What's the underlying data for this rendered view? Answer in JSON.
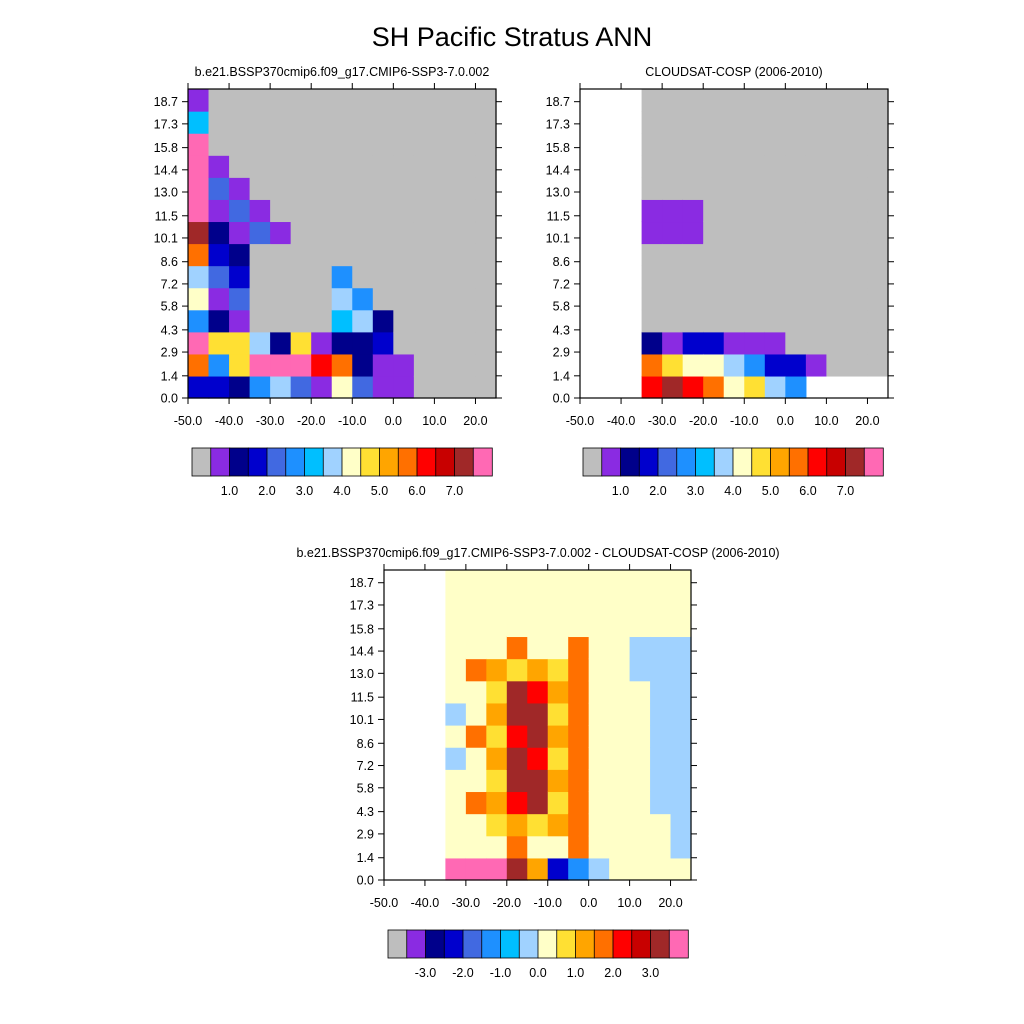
{
  "figure": {
    "title": "SH Pacific Stratus ANN"
  },
  "chart_data": [
    {
      "type": "heatmap",
      "title": "b.e21.BSSP370cmip6.f09_g17.CMIP6-SSP3-7.0.002",
      "x_ticks": [
        "-50.0",
        "-40.0",
        "-30.0",
        "-20.0",
        "-10.0",
        "0.0",
        "10.0",
        "20.0"
      ],
      "y_ticks": [
        "0.0",
        "1.4",
        "2.9",
        "4.3",
        "5.8",
        "7.2",
        "8.6",
        "10.1",
        "11.5",
        "13.0",
        "14.4",
        "15.8",
        "17.3",
        "18.7"
      ],
      "xlim": [
        -50,
        25
      ],
      "ylim": [
        0,
        19.5
      ],
      "background": "#bebebe",
      "colorbar_labels": [
        "1.0",
        "2.0",
        "3.0",
        "4.0",
        "5.0",
        "6.0",
        "7.0"
      ]
    },
    {
      "type": "heatmap",
      "title": "CLOUDSAT-COSP (2006-2010)",
      "x_ticks": [
        "-50.0",
        "-40.0",
        "-30.0",
        "-20.0",
        "-10.0",
        "0.0",
        "10.0",
        "20.0"
      ],
      "y_ticks": [
        "0.0",
        "1.4",
        "2.9",
        "4.3",
        "5.8",
        "7.2",
        "8.6",
        "10.1",
        "11.5",
        "13.0",
        "14.4",
        "15.8",
        "17.3",
        "18.7"
      ],
      "xlim": [
        -50,
        25
      ],
      "ylim": [
        0,
        19.5
      ],
      "background": "#bebebe",
      "colorbar_labels": [
        "1.0",
        "2.0",
        "3.0",
        "4.0",
        "5.0",
        "6.0",
        "7.0"
      ]
    },
    {
      "type": "heatmap",
      "title": "b.e21.BSSP370cmip6.f09_g17.CMIP6-SSP3-7.0.002 - CLOUDSAT-COSP (2006-2010)",
      "x_ticks": [
        "-50.0",
        "-40.0",
        "-30.0",
        "-20.0",
        "-10.0",
        "0.0",
        "10.0",
        "20.0"
      ],
      "y_ticks": [
        "0.0",
        "1.4",
        "2.9",
        "4.3",
        "5.8",
        "7.2",
        "8.6",
        "10.1",
        "11.5",
        "13.0",
        "14.4",
        "15.8",
        "17.3",
        "18.7"
      ],
      "xlim": [
        -50,
        25
      ],
      "ylim": [
        0,
        19.5
      ],
      "background": "#ffffc8",
      "colorbar_labels": [
        "-3.0",
        "-2.0",
        "-1.0",
        "0.0",
        "1.0",
        "2.0",
        "3.0"
      ]
    }
  ],
  "palette": [
    "#bebebe",
    "#8a2be2",
    "#00008b",
    "#0000cd",
    "#4169e1",
    "#1e90ff",
    "#00bfff",
    "#a0d2ff",
    "#ffffc8",
    "#ffe033",
    "#ffa500",
    "#ff7000",
    "#ff0000",
    "#c80000",
    "#a02828",
    "#ff69b4"
  ]
}
